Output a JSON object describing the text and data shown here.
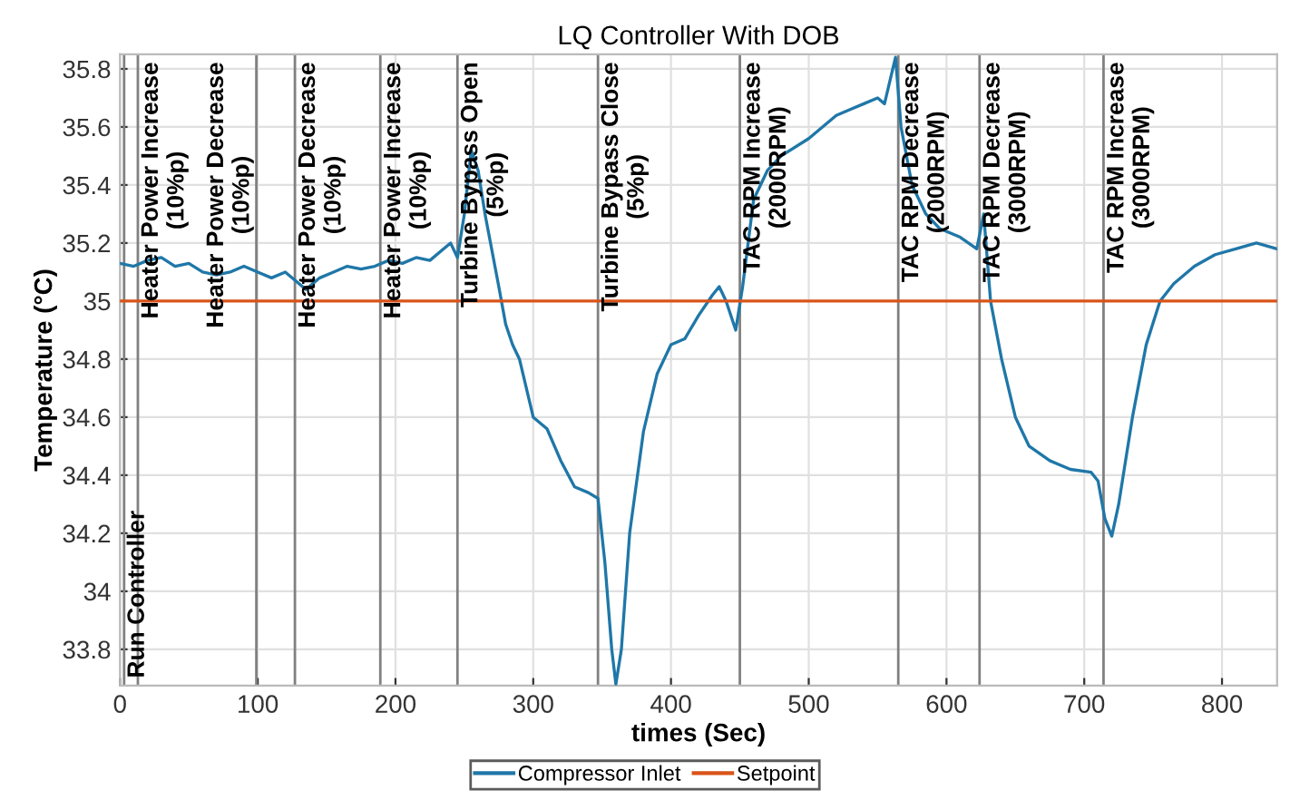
{
  "chart_data": {
    "type": "line",
    "title": "LQ Controller With DOB",
    "xlabel": "times (Sec)",
    "ylabel": "Temperature (°C)",
    "xlim": [
      0,
      840
    ],
    "xticks": [
      0,
      100,
      200,
      300,
      400,
      500,
      600,
      700,
      800
    ],
    "ylim": [
      33.675,
      35.85
    ],
    "yticks": [
      33.8,
      34,
      34.2,
      34.4,
      34.6,
      34.8,
      35,
      35.2,
      35.4,
      35.6,
      35.8
    ],
    "grid": true,
    "legend": "bottom",
    "line_style": "solid",
    "marker": "none",
    "series": [
      {
        "name": "Compressor Inlet",
        "color": "#1f77a8",
        "x": [
          0,
          10,
          20,
          30,
          40,
          50,
          60,
          70,
          80,
          90,
          100,
          110,
          120,
          130,
          135,
          145,
          155,
          165,
          175,
          185,
          195,
          205,
          215,
          225,
          235,
          240,
          245,
          250,
          255,
          260,
          265,
          275,
          280,
          285,
          290,
          300,
          310,
          320,
          330,
          340,
          347,
          352,
          357,
          360,
          364,
          370,
          380,
          390,
          400,
          410,
          420,
          430,
          435,
          440,
          447,
          452,
          460,
          470,
          480,
          500,
          510,
          520,
          530,
          540,
          550,
          555,
          563,
          567,
          575,
          585,
          595,
          610,
          622,
          627,
          632,
          640,
          650,
          660,
          675,
          690,
          705,
          710,
          715,
          720,
          725,
          735,
          745,
          755,
          765,
          780,
          795,
          810,
          825,
          840
        ],
        "values": [
          35.13,
          35.12,
          35.14,
          35.15,
          35.12,
          35.13,
          35.1,
          35.09,
          35.1,
          35.12,
          35.1,
          35.08,
          35.1,
          35.06,
          35.04,
          35.08,
          35.1,
          35.12,
          35.11,
          35.12,
          35.14,
          35.13,
          35.15,
          35.14,
          35.18,
          35.2,
          35.15,
          35.3,
          35.52,
          35.45,
          35.3,
          35.05,
          34.92,
          34.85,
          34.8,
          34.6,
          34.56,
          34.45,
          34.36,
          34.34,
          34.32,
          34.1,
          33.8,
          33.68,
          33.8,
          34.2,
          34.55,
          34.75,
          34.85,
          34.87,
          34.95,
          35.02,
          35.05,
          35.0,
          34.9,
          35.05,
          35.35,
          35.45,
          35.5,
          35.56,
          35.6,
          35.64,
          35.66,
          35.68,
          35.7,
          35.68,
          35.84,
          35.6,
          35.4,
          35.3,
          35.25,
          35.22,
          35.18,
          35.3,
          35.0,
          34.8,
          34.6,
          34.5,
          34.45,
          34.42,
          34.41,
          34.38,
          34.25,
          34.19,
          34.3,
          34.6,
          34.85,
          35.0,
          35.06,
          35.12,
          35.16,
          35.18,
          35.2,
          35.18
        ]
      },
      {
        "name": "Setpoint",
        "color": "#d95319",
        "x": [
          0,
          840
        ],
        "values": [
          35,
          35
        ]
      }
    ],
    "ref_lines": [
      {
        "axis": "x",
        "value": 3,
        "label": "Run Controller",
        "color": "#808080"
      },
      {
        "axis": "x",
        "value": 13,
        "label": "Heater Power Increase\n(10%p)",
        "color": "#808080"
      },
      {
        "axis": "x",
        "value": 99,
        "label": "Heater Power Decrease\n(10%p)",
        "color": "#808080"
      },
      {
        "axis": "x",
        "value": 127,
        "label": "Heater Power Decrease\n(10%p)",
        "color": "#808080"
      },
      {
        "axis": "x",
        "value": 189,
        "label": "Heater Power Increase\n(10%p)",
        "color": "#808080"
      },
      {
        "axis": "x",
        "value": 245,
        "label": "Turbine Bypass Open\n(5%p)",
        "color": "#808080"
      },
      {
        "axis": "x",
        "value": 347,
        "label": "Turbine Bypass Close\n(5%p)",
        "color": "#808080"
      },
      {
        "axis": "x",
        "value": 450,
        "label": "TAC RPM Increase\n(2000RPM)",
        "color": "#808080"
      },
      {
        "axis": "x",
        "value": 565,
        "label": "TAC RPM Decrease\n(2000RPM)",
        "color": "#808080"
      },
      {
        "axis": "x",
        "value": 624,
        "label": "TAC RPM Decrease\n(3000RPM)",
        "color": "#808080"
      },
      {
        "axis": "x",
        "value": 714,
        "label": "TAC RPM Increase\n(3000RPM)",
        "color": "#808080"
      }
    ]
  }
}
